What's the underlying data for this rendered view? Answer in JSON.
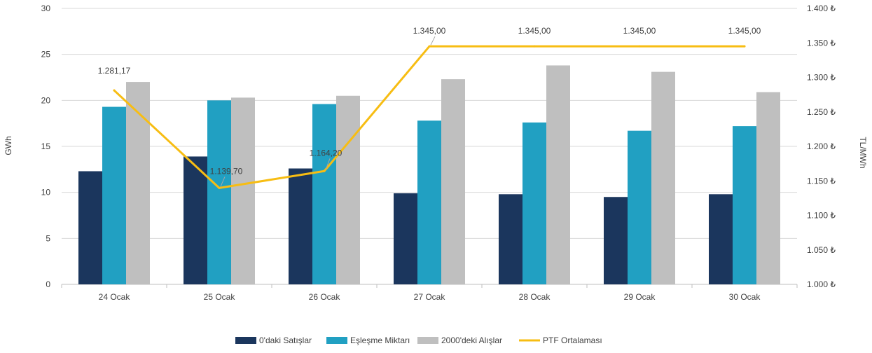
{
  "chart_data": {
    "type": "bar",
    "categories": [
      "24 Ocak",
      "25 Ocak",
      "26 Ocak",
      "27 Ocak",
      "28 Ocak",
      "29 Ocak",
      "30 Ocak"
    ],
    "series": [
      {
        "name": "0'daki Satışlar",
        "type": "bar",
        "axis": "left",
        "color": "#1b365d",
        "values": [
          12.3,
          13.9,
          12.6,
          9.9,
          9.8,
          9.5,
          9.8
        ]
      },
      {
        "name": "Eşleşme Miktarı",
        "type": "bar",
        "axis": "left",
        "color": "#21a0c2",
        "values": [
          19.3,
          20.0,
          19.6,
          17.8,
          17.6,
          16.7,
          17.2
        ]
      },
      {
        "name": "2000'deki Alışlar",
        "type": "bar",
        "axis": "left",
        "color": "#bfbfbf",
        "values": [
          22.0,
          20.3,
          20.5,
          22.3,
          23.8,
          23.1,
          20.9
        ]
      },
      {
        "name": "PTF Ortalaması",
        "type": "line",
        "axis": "right",
        "color": "#f7bd13",
        "values": [
          1281.17,
          1139.7,
          1164.2,
          1345.0,
          1345.0,
          1345.0,
          1345.0
        ],
        "labels": [
          "1.281,17",
          "1.139,70",
          "1.164,20",
          "1.345,00",
          "1.345,00",
          "1.345,00",
          "1.345,00"
        ]
      }
    ],
    "ylabel": "GWh",
    "y2label": "TL/MWh",
    "ylim": [
      0,
      30
    ],
    "y2lim": [
      1000,
      1400
    ],
    "yticks": [
      "0",
      "5",
      "10",
      "15",
      "20",
      "25",
      "30"
    ],
    "y2ticks": [
      "1.000 ₺",
      "1.050 ₺",
      "1.100 ₺",
      "1.150 ₺",
      "1.200 ₺",
      "1.250 ₺",
      "1.300 ₺",
      "1.350 ₺",
      "1.400 ₺"
    ],
    "grid": true,
    "legend_position": "bottom"
  }
}
